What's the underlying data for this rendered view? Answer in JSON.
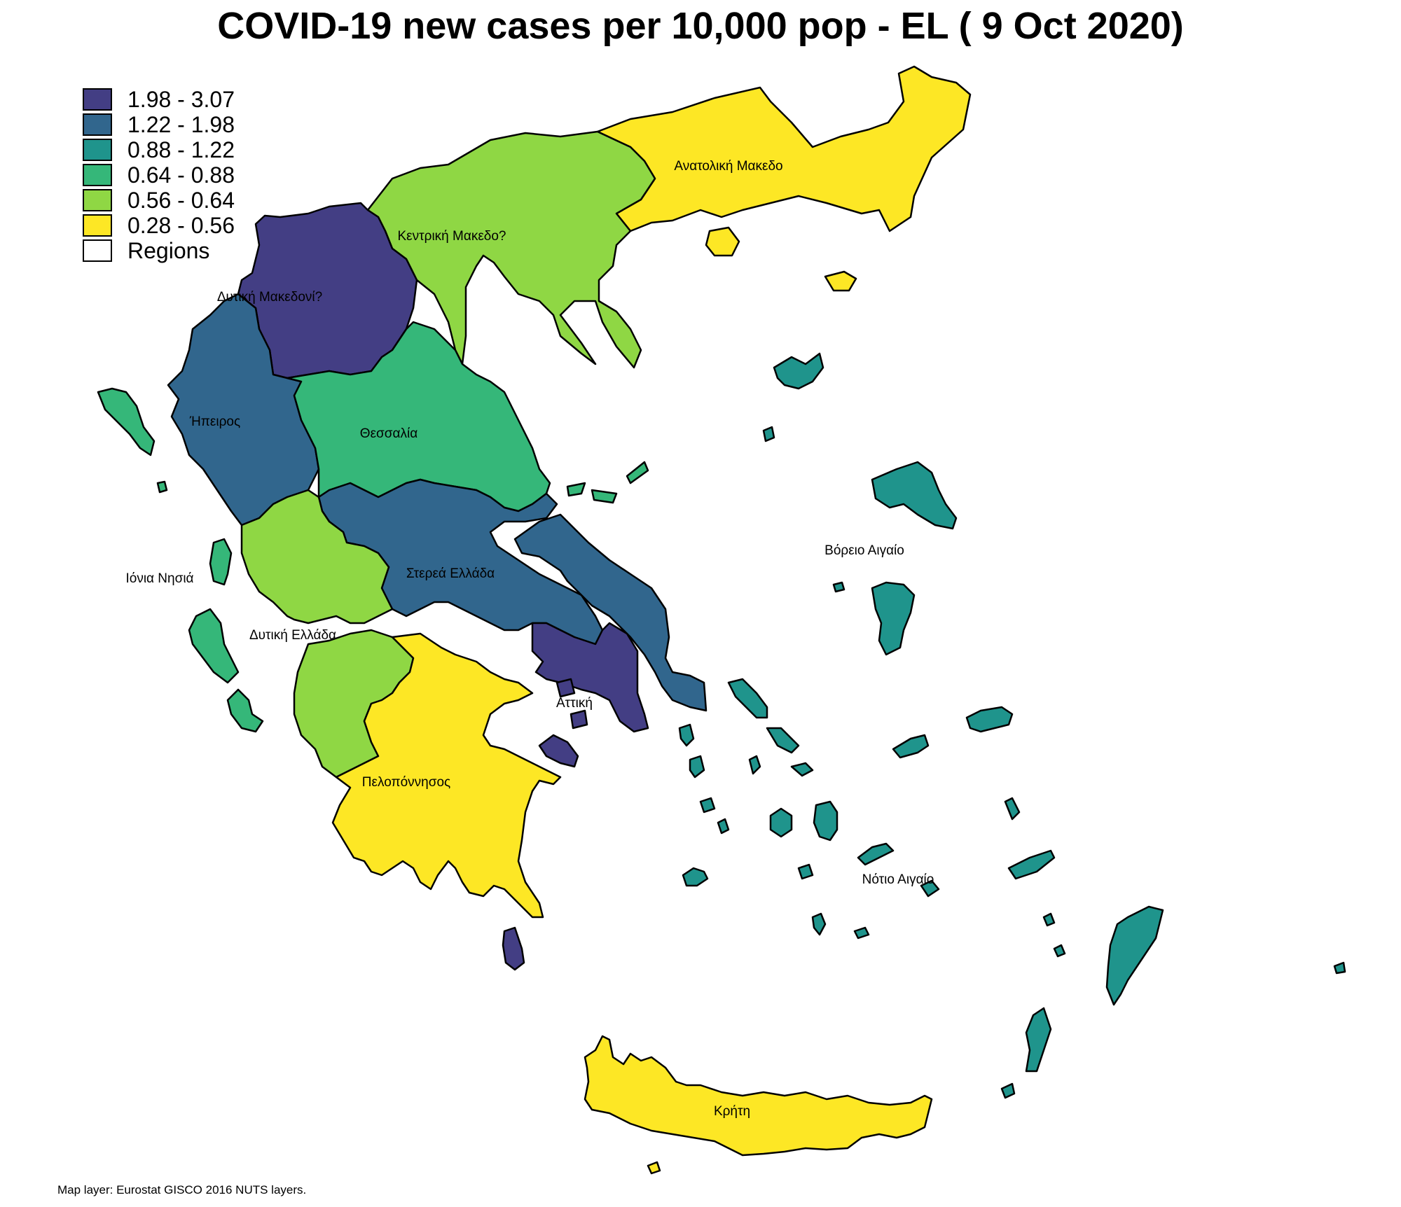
{
  "title": "COVID-19 new cases per 10,000 pop - EL ( 9 Oct 2020)",
  "legend": [
    {
      "label": "1.98 - 3.07",
      "color": "#433e84"
    },
    {
      "label": "1.22 - 1.98",
      "color": "#31668d"
    },
    {
      "label": "0.88 - 1.22",
      "color": "#1f948c"
    },
    {
      "label": "0.64 - 0.88",
      "color": "#35b779"
    },
    {
      "label": "0.56 - 0.64",
      "color": "#8fd744"
    },
    {
      "label": "0.28 - 0.56",
      "color": "#fde725"
    },
    {
      "label": "Regions",
      "color": "#ffffff"
    }
  ],
  "regions": {
    "anatoliki_makedonia": {
      "label": "Ανατολική Μακεδο",
      "class": "0.28 - 0.56"
    },
    "kentriki_makedonia": {
      "label": "Κεντρική Μακεδο?",
      "class": "0.56 - 0.64"
    },
    "dytiki_makedonia": {
      "label": "Δυτική Μακεδονί?",
      "class": "1.98 - 3.07"
    },
    "ipeiros": {
      "label": "Ήπειρος",
      "class": "1.22 - 1.98"
    },
    "thessalia": {
      "label": "Θεσσαλία",
      "class": "0.64 - 0.88"
    },
    "ionia_nisia": {
      "label": "Ιόνια Νησιά",
      "class": "0.64 - 0.88"
    },
    "dytiki_ellada": {
      "label": "Δυτική Ελλάδα",
      "class": "0.56 - 0.64"
    },
    "sterea_ellada": {
      "label": "Στερεά Ελλάδα",
      "class": "1.22 - 1.98"
    },
    "attiki": {
      "label": "Αττική",
      "class": "1.98 - 3.07"
    },
    "voreio_aigaio": {
      "label": "Βόρειο Αιγαίο",
      "class": "0.88 - 1.22"
    },
    "notio_aigaio": {
      "label": "Νότιο Αιγαίο",
      "class": "0.88 - 1.22"
    },
    "peloponnisos": {
      "label": "Πελοπόννησος",
      "class": "0.28 - 0.56"
    },
    "kriti": {
      "label": "Κρήτη",
      "class": "0.28 - 0.56"
    }
  },
  "source": "Map layer: Eurostat GISCO 2016 NUTS layers."
}
